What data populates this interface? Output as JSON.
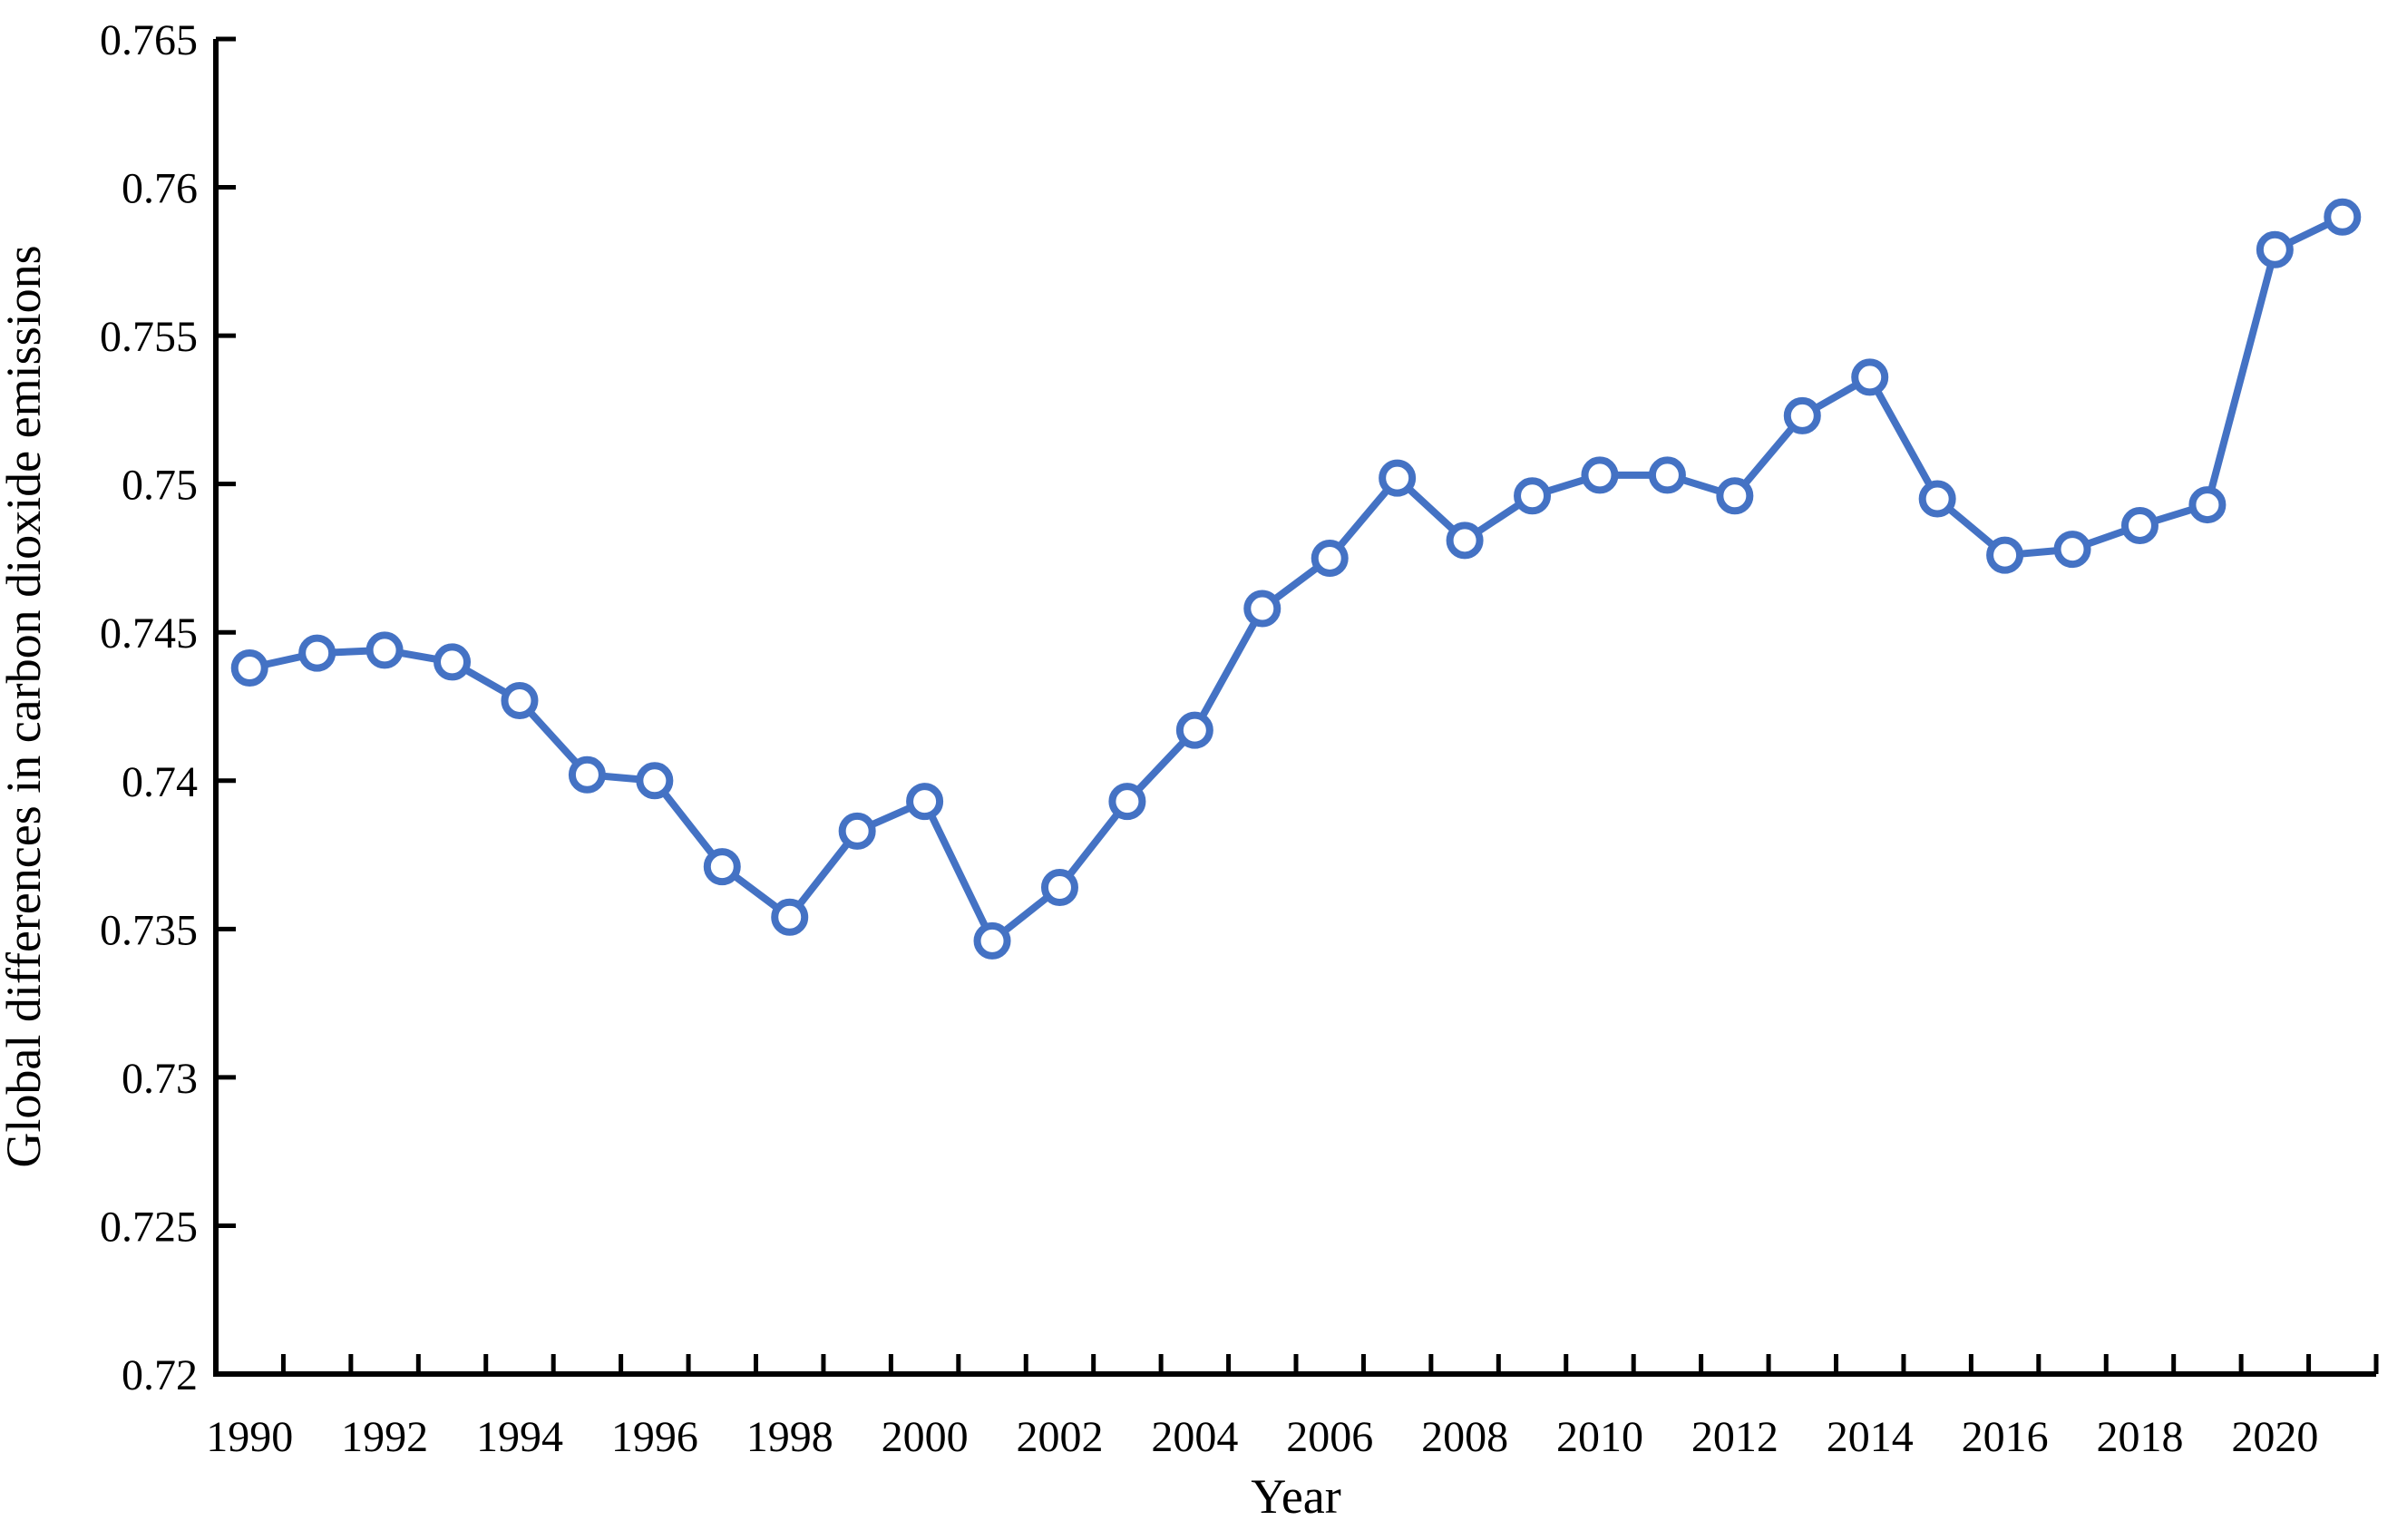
{
  "figure": {
    "background_color": "#ffffff",
    "axis_color": "#000000",
    "accent_color": "#4472C4"
  },
  "chart_data": {
    "type": "line",
    "title": "",
    "xlabel": "Year",
    "ylabel": "Global differences in carbon dioxide emissions",
    "x": [
      1990,
      1991,
      1992,
      1993,
      1994,
      1995,
      1996,
      1997,
      1998,
      1999,
      2000,
      2001,
      2002,
      2003,
      2004,
      2005,
      2006,
      2007,
      2008,
      2009,
      2010,
      2011,
      2012,
      2013,
      2014,
      2015,
      2016,
      2017,
      2018,
      2019,
      2020,
      2021
    ],
    "series": [
      {
        "name": "Global differences in carbon dioxide emissions",
        "values": [
          0.7438,
          0.7443,
          0.7444,
          0.744,
          0.7427,
          0.7402,
          0.74,
          0.7371,
          0.7354,
          0.7383,
          0.7393,
          0.7346,
          0.7364,
          0.7393,
          0.7417,
          0.7458,
          0.7475,
          0.7502,
          0.7481,
          0.7496,
          0.7503,
          0.7503,
          0.7496,
          0.7523,
          0.7536,
          0.7495,
          0.7476,
          0.7478,
          0.7486,
          0.7493,
          0.7579,
          0.759
        ]
      }
    ],
    "ylim": [
      0.72,
      0.765
    ],
    "y_tick_step": 0.005,
    "y_tick_labels": [
      "0.765",
      "0.76",
      "0.755",
      "0.75",
      "0.745",
      "0.74",
      "0.735",
      "0.73",
      "0.725",
      "0.72"
    ],
    "x_tick_labels": [
      "1990",
      "1992",
      "1994",
      "1996",
      "1998",
      "2000",
      "2002",
      "2004",
      "2006",
      "2008",
      "2010",
      "2012",
      "2014",
      "2016",
      "2018",
      "2020"
    ],
    "grid": false,
    "legend": "none",
    "line_color": "#4472C4",
    "marker": "open-circle",
    "marker_fill": "#ffffff"
  }
}
